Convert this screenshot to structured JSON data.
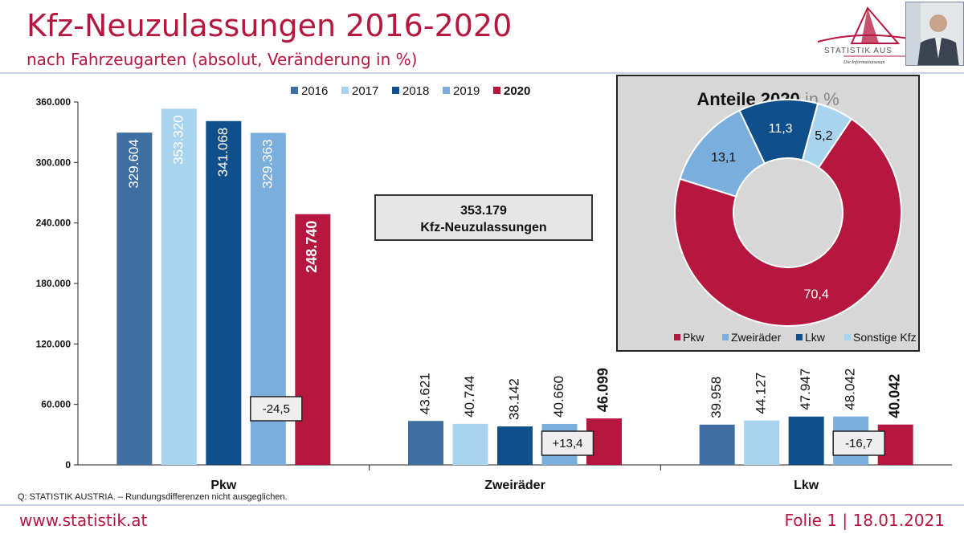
{
  "header": {
    "title": "Kfz-Neuzulassungen 2016-2020",
    "subtitle": "nach Fahrzeugarten (absolut, Veränderung in %)",
    "logo_text": "STATISTIK AUS",
    "logo_tagline": "Die Informationsman"
  },
  "footer": {
    "note": "Q: STATISTIK AUSTRIA. – Rundungsdifferenzen nicht ausgeglichen.",
    "url": "www.statistik.at",
    "folio": "Folie 1 | 18.01.2021"
  },
  "total_box": {
    "value": "353.179",
    "label": "Kfz-Neuzulassungen"
  },
  "colors": {
    "2016": "#3f6fa0",
    "2017": "#a9d4ef",
    "2018": "#0f4f8c",
    "2019": "#7aaedc",
    "2020": "#b5173f",
    "accent": "#b5173f"
  },
  "chart_data": [
    {
      "type": "bar",
      "categories": [
        "Pkw",
        "Zweiräder",
        "Lkw"
      ],
      "series": [
        {
          "name": "2016",
          "values": [
            329604,
            43621,
            39958
          ],
          "labels": [
            "329.604",
            "43.621",
            "39.958"
          ]
        },
        {
          "name": "2017",
          "values": [
            353320,
            40744,
            44127
          ],
          "labels": [
            "353.320",
            "40.744",
            "44.127"
          ]
        },
        {
          "name": "2018",
          "values": [
            341068,
            38142,
            47947
          ],
          "labels": [
            "341.068",
            "38.142",
            "47.947"
          ]
        },
        {
          "name": "2019",
          "values": [
            329363,
            40660,
            48042
          ],
          "labels": [
            "329.363",
            "40.660",
            "48.042"
          ]
        },
        {
          "name": "2020",
          "values": [
            248740,
            46099,
            40042
          ],
          "labels": [
            "248.740",
            "46.099",
            "40.042"
          ]
        }
      ],
      "changes": [
        "-24,5",
        "+13,4",
        "-16,7"
      ],
      "ylim": [
        0,
        360000
      ],
      "yticks": [
        0,
        60000,
        120000,
        180000,
        240000,
        300000,
        360000
      ],
      "ytick_labels": [
        "0",
        "60.000",
        "120.000",
        "180.000",
        "240.000",
        "300.000",
        "360.000"
      ],
      "legend_position": "top",
      "grid": false
    },
    {
      "type": "pie",
      "title": "Anteile 2020",
      "title_suffix": "in %",
      "donut": true,
      "slices": [
        {
          "name": "Pkw",
          "value": 70.4,
          "label": "70,4",
          "color": "#b5173f"
        },
        {
          "name": "Zweiräder",
          "value": 13.1,
          "label": "13,1",
          "color": "#7aaedc"
        },
        {
          "name": "Lkw",
          "value": 11.3,
          "label": "11,3",
          "color": "#0f4f8c"
        },
        {
          "name": "Sonstige Kfz",
          "value": 5.2,
          "label": "5,2",
          "color": "#a9d4ef"
        }
      ],
      "legend_position": "bottom"
    }
  ]
}
